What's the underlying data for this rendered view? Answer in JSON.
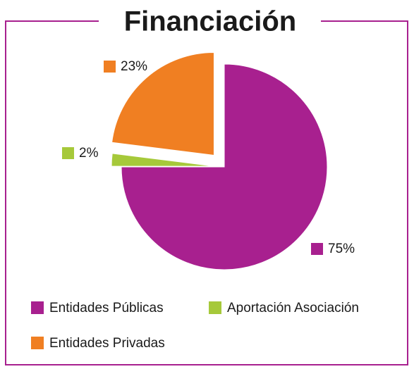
{
  "chart_data": {
    "type": "pie",
    "title": "Financiación",
    "categories": [
      "Entidades Públicas",
      "Aportación Asociación",
      "Entidades Privadas"
    ],
    "values": [
      75,
      2,
      23
    ],
    "value_labels": [
      "75%",
      "2%",
      "23%"
    ],
    "colors": [
      "#a8208f",
      "#a6c93a",
      "#f07f22"
    ]
  }
}
